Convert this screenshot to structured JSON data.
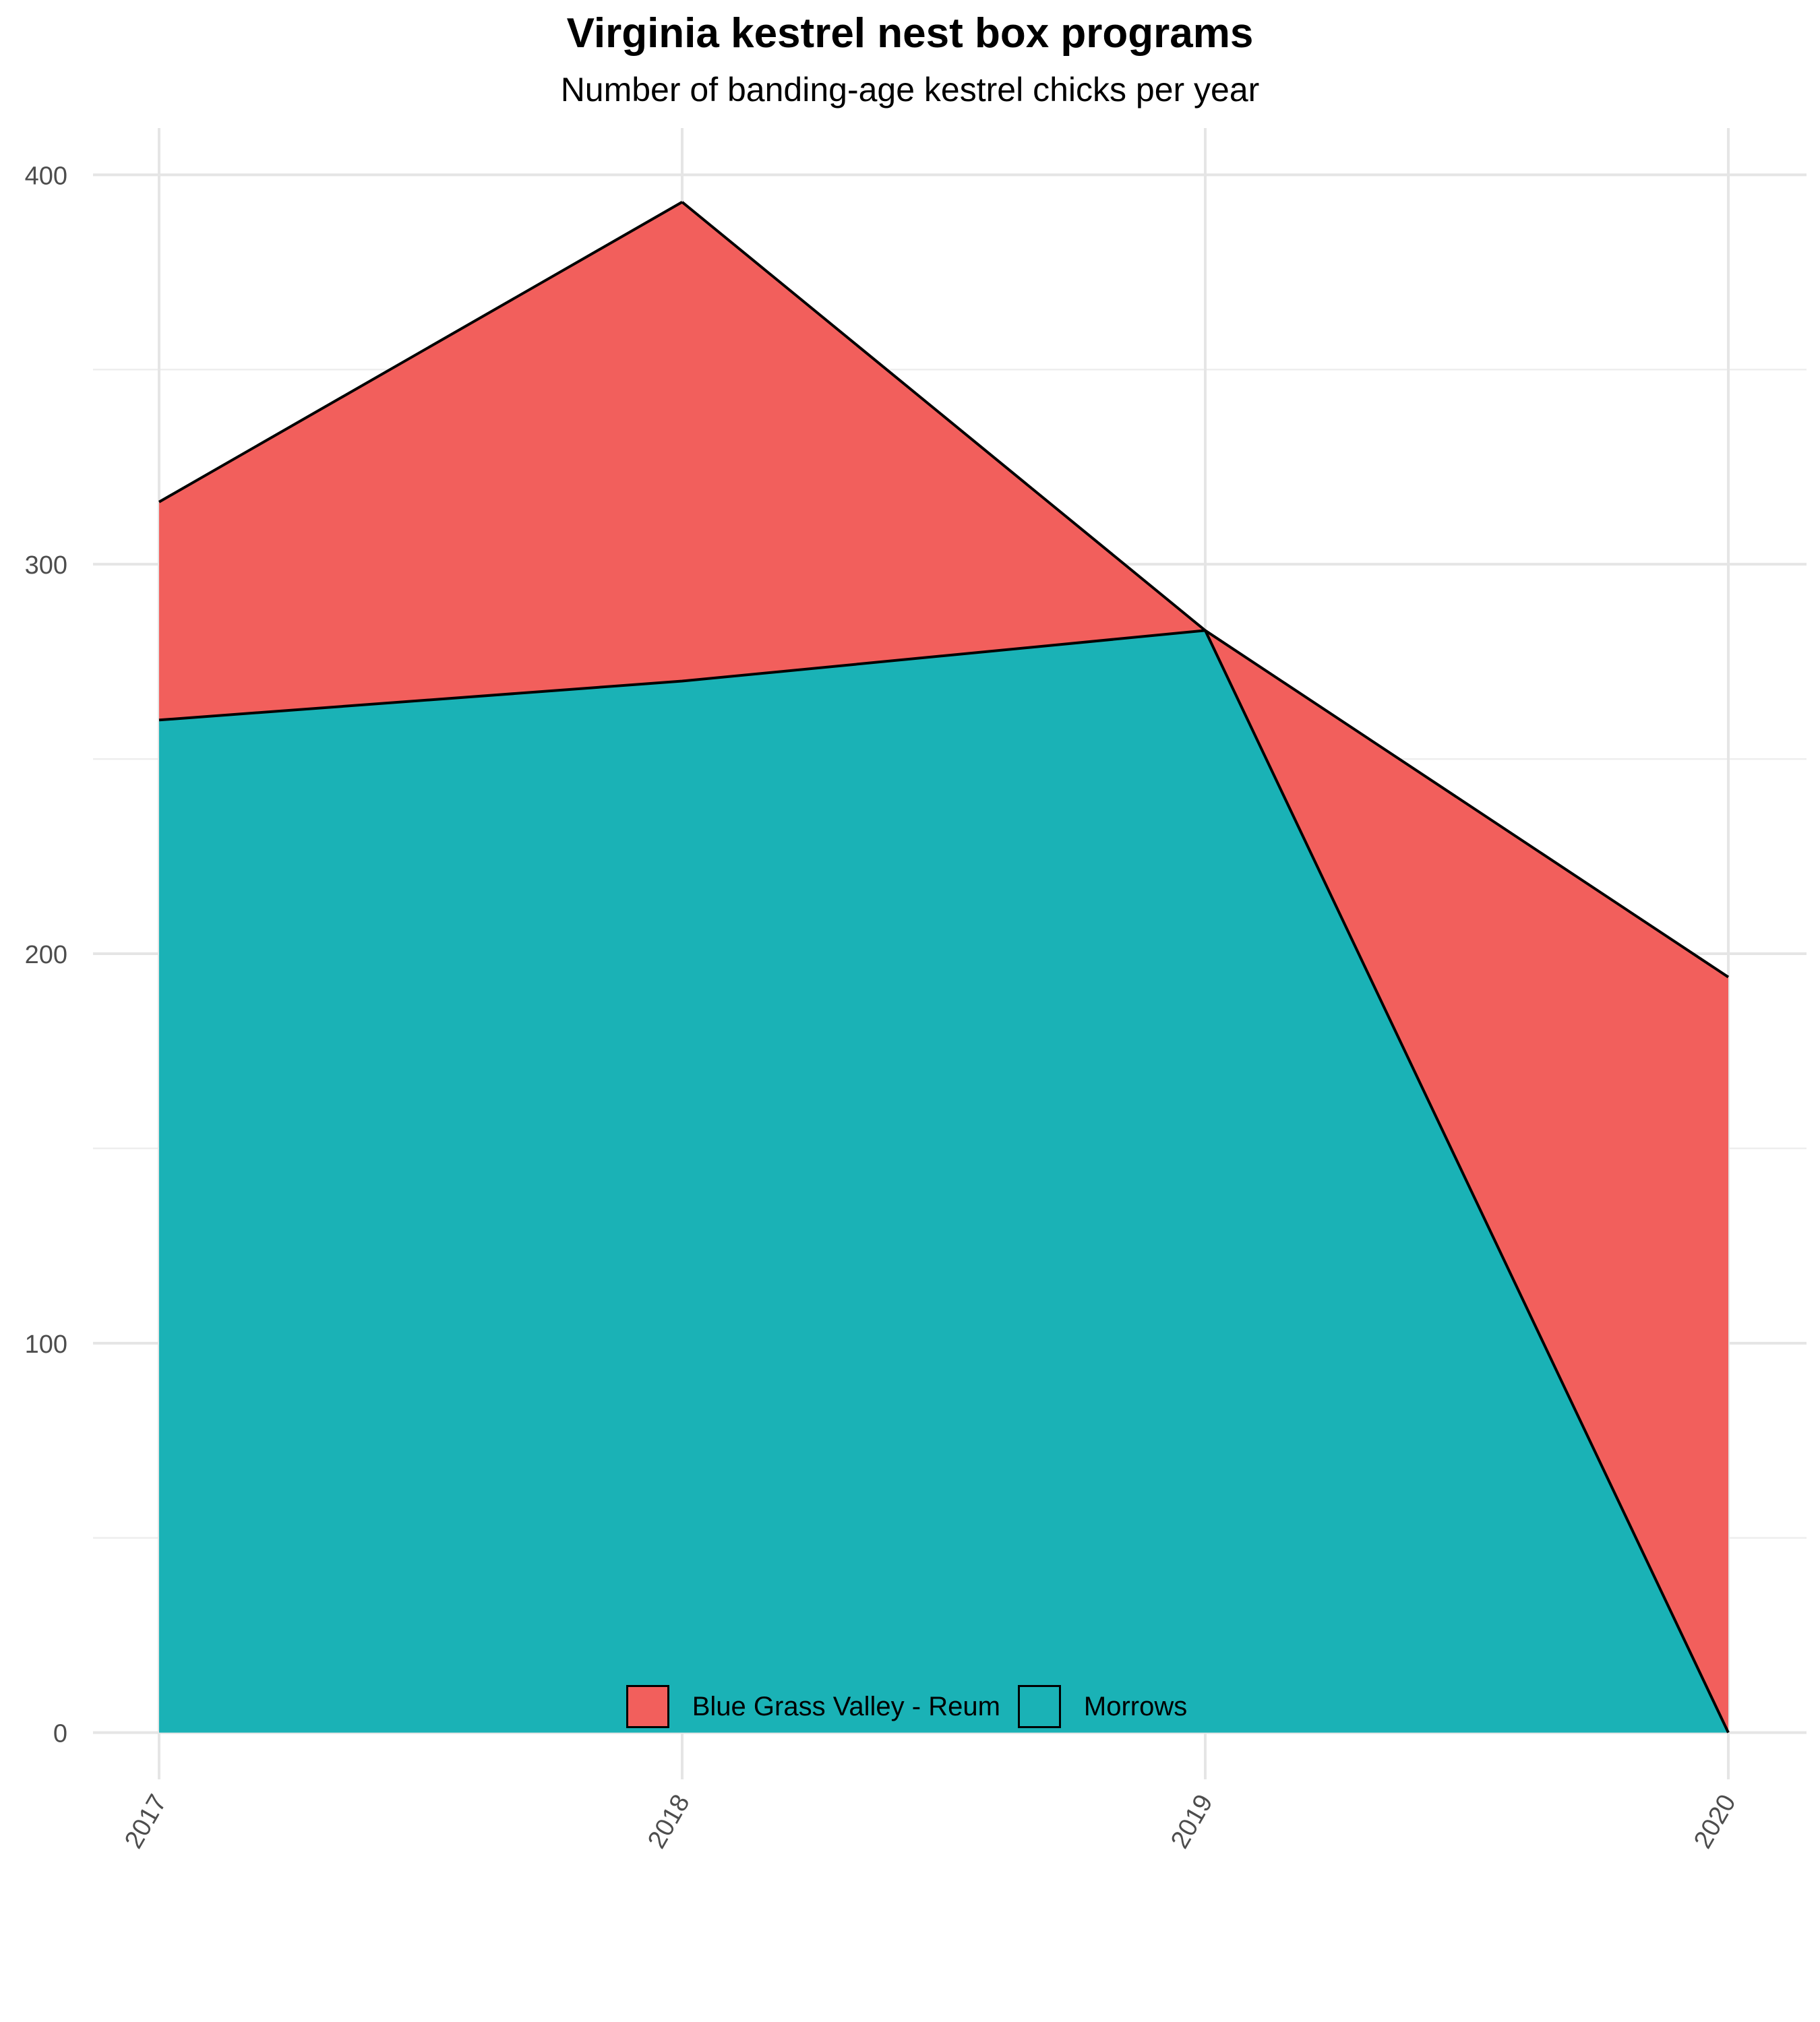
{
  "chart_data": {
    "type": "area",
    "stacked": true,
    "title": "Virginia kestrel nest box programs",
    "subtitle": "Number of banding-age kestrel chicks per year",
    "xlabel": "",
    "ylabel": "",
    "x": [
      "2017",
      "2018",
      "2019",
      "2020"
    ],
    "x_tick_labels": [
      "2017",
      "2018",
      "2019",
      "2020"
    ],
    "y_tick_labels": [
      "0",
      "100",
      "200",
      "300",
      "400"
    ],
    "ylim": [
      -12,
      412
    ],
    "grid": true,
    "legend_position": "bottom",
    "series": [
      {
        "name": "Blue Grass Valley - Reum",
        "color": "#F25F5C",
        "values": [
          56,
          123,
          0,
          194
        ]
      },
      {
        "name": "Morrows",
        "color": "#1AB2B6",
        "values": [
          260,
          270,
          283,
          0
        ]
      }
    ],
    "stack_order": [
      "Morrows",
      "Blue Grass Valley - Reum"
    ],
    "outline_color": "#000000"
  }
}
